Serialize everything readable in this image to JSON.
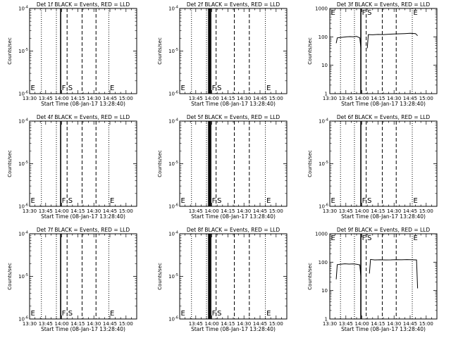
{
  "chart_data": [
    {
      "id": "det1",
      "type": "line",
      "title": "Det 1f BLACK = Events, RED = LLD",
      "xlabel": "Start Time (08-Jan-17 13:28:40)",
      "ylabel": "Counts/sec",
      "xlim": [
        "13:30",
        "15:10"
      ],
      "x_ticks": [
        "13:30",
        "13:45",
        "14:00",
        "14:15",
        "14:30",
        "14:45",
        "15:00"
      ],
      "y_scale": "log",
      "ylim": [
        1e-06,
        0.0001
      ],
      "y_ticks": [
        "10^-6",
        "10^-5",
        "10^-4"
      ],
      "y_tick_style": "power",
      "vlines_dotted": [
        "13:41",
        "13:55",
        "14:44"
      ],
      "vlines_solid": [
        "13:59"
      ],
      "vlines_dashed": [
        "14:05",
        "14:19",
        "14:32"
      ],
      "markers": [
        {
          "label": "E",
          "x": "13:30",
          "pos": "bottom"
        },
        {
          "label": "F",
          "x": "13:59",
          "pos": "bottom"
        },
        {
          "label": "S",
          "x": "14:05",
          "pos": "bottom"
        },
        {
          "label": "E",
          "x": "14:44",
          "pos": "bottom"
        }
      ],
      "series": []
    },
    {
      "id": "det2",
      "type": "line",
      "title": "Det 2f BLACK = Events, RED = LLD",
      "xlabel": "Start Time (08-Jan-17 13:28:40)",
      "ylabel": "Counts/sec",
      "xlim": [
        "13:30",
        "15:10"
      ],
      "x_ticks": [
        "13:45",
        "14:00",
        "14:15",
        "14:30",
        "14:45",
        "15:00"
      ],
      "y_scale": "log",
      "ylim": [
        1e-06,
        0.0001
      ],
      "y_ticks": [
        "10^-6",
        "10^-5",
        "10^-4"
      ],
      "y_tick_style": "power",
      "vlines_dotted": [
        "13:41",
        "13:55",
        "14:50"
      ],
      "vlines_solid": [
        "13:57",
        "13:58",
        "13:59"
      ],
      "vlines_dashed": [
        "14:04",
        "14:21",
        "14:35"
      ],
      "markers": [
        {
          "label": "E",
          "x": "13:30",
          "pos": "bottom"
        },
        {
          "label": "F",
          "x": "13:59",
          "pos": "bottom"
        },
        {
          "label": "S",
          "x": "14:04",
          "pos": "bottom"
        },
        {
          "label": "E",
          "x": "14:50",
          "pos": "bottom"
        }
      ],
      "series": []
    },
    {
      "id": "det3",
      "type": "line",
      "title": "Det 3f BLACK = Events, RED = LLD",
      "xlabel": "Start Time (08-Jan-17 13:28:40)",
      "ylabel": "Counts/sec",
      "xlim": [
        "13:30",
        "15:10"
      ],
      "x_ticks": [
        "13:30",
        "13:45",
        "14:00",
        "14:15",
        "14:30",
        "14:45",
        "15:00"
      ],
      "y_scale": "log",
      "ylim": [
        1,
        1000
      ],
      "y_ticks": [
        "1",
        "10",
        "100",
        "1000"
      ],
      "y_tick_style": "plain",
      "vlines_dotted": [
        "13:40",
        "13:53",
        "14:47"
      ],
      "vlines_solid": [
        "13:59"
      ],
      "vlines_dashed": [
        "14:04",
        "14:19",
        "14:32"
      ],
      "markers": [
        {
          "label": "E",
          "x": "13:30",
          "pos": "top"
        },
        {
          "label": "F",
          "x": "13:59",
          "pos": "top"
        },
        {
          "label": "S",
          "x": "14:04",
          "pos": "top"
        },
        {
          "label": "E",
          "x": "14:47",
          "pos": "top"
        }
      ],
      "series": [
        {
          "color": "#000000",
          "segments": [
            [
              [
                "13:36",
                60
              ],
              [
                "13:37",
                92
              ],
              [
                "13:40",
                95
              ],
              [
                "13:43",
                98
              ],
              [
                "13:46",
                100
              ],
              [
                "13:49",
                102
              ],
              [
                "13:52",
                100
              ],
              [
                "13:55",
                104
              ],
              [
                "13:58",
                92
              ],
              [
                "13:59",
                40
              ]
            ],
            [
              [
                "14:05",
                40
              ],
              [
                "14:06",
                120
              ],
              [
                "14:10",
                118
              ],
              [
                "14:15",
                122
              ],
              [
                "14:20",
                120
              ],
              [
                "14:25",
                124
              ],
              [
                "14:30",
                126
              ],
              [
                "14:35",
                128
              ],
              [
                "14:40",
                130
              ],
              [
                "14:45",
                133
              ],
              [
                "14:50",
                130
              ],
              [
                "14:52",
                110
              ]
            ]
          ]
        }
      ]
    },
    {
      "id": "det4",
      "type": "line",
      "title": "Det 4f BLACK = Events, RED = LLD",
      "xlabel": "Start Time (08-Jan-17 13:28:40)",
      "ylabel": "Counts/sec",
      "xlim": [
        "13:30",
        "15:10"
      ],
      "x_ticks": [
        "13:30",
        "13:45",
        "14:00",
        "14:15",
        "14:30",
        "14:45",
        "15:00"
      ],
      "y_scale": "log",
      "ylim": [
        1e-06,
        0.0001
      ],
      "y_ticks": [
        "10^-6",
        "10^-5",
        "10^-4"
      ],
      "y_tick_style": "power",
      "vlines_dotted": [
        "13:41",
        "13:55",
        "14:44"
      ],
      "vlines_solid": [
        "13:59"
      ],
      "vlines_dashed": [
        "14:05",
        "14:19",
        "14:32"
      ],
      "markers": [
        {
          "label": "E",
          "x": "13:30",
          "pos": "bottom"
        },
        {
          "label": "F",
          "x": "13:59",
          "pos": "bottom"
        },
        {
          "label": "S",
          "x": "14:05",
          "pos": "bottom"
        },
        {
          "label": "E",
          "x": "14:44",
          "pos": "bottom"
        }
      ],
      "series": []
    },
    {
      "id": "det5",
      "type": "line",
      "title": "Det 5f BLACK = Events, RED = LLD",
      "xlabel": "Start Time (08-Jan-17 13:28:40)",
      "ylabel": "Counts/sec",
      "xlim": [
        "13:30",
        "15:10"
      ],
      "x_ticks": [
        "13:45",
        "14:00",
        "14:15",
        "14:30",
        "14:45",
        "15:00"
      ],
      "y_scale": "log",
      "ylim": [
        1e-06,
        0.0001
      ],
      "y_ticks": [
        "10^-6",
        "10^-5",
        "10^-4"
      ],
      "y_tick_style": "power",
      "vlines_dotted": [
        "13:41",
        "13:55",
        "14:50"
      ],
      "vlines_solid": [
        "13:57",
        "13:58",
        "13:59"
      ],
      "vlines_dashed": [
        "14:04",
        "14:21",
        "14:35"
      ],
      "markers": [
        {
          "label": "E",
          "x": "13:30",
          "pos": "bottom"
        },
        {
          "label": "F",
          "x": "13:59",
          "pos": "bottom"
        },
        {
          "label": "S",
          "x": "14:04",
          "pos": "bottom"
        },
        {
          "label": "E",
          "x": "14:50",
          "pos": "bottom"
        }
      ],
      "series": []
    },
    {
      "id": "det6",
      "type": "line",
      "title": "Det 6f BLACK = Events, RED = LLD",
      "xlabel": "Start Time (08-Jan-17 13:28:40)",
      "ylabel": "Counts/sec",
      "xlim": [
        "13:30",
        "15:10"
      ],
      "x_ticks": [
        "13:30",
        "13:45",
        "14:00",
        "14:15",
        "14:30",
        "14:45",
        "15:00"
      ],
      "y_scale": "log",
      "ylim": [
        1e-06,
        0.0001
      ],
      "y_ticks": [
        "10^-6",
        "10^-5",
        "10^-4"
      ],
      "y_tick_style": "power",
      "vlines_dotted": [
        "13:40",
        "13:53",
        "14:47"
      ],
      "vlines_solid": [
        "13:59"
      ],
      "vlines_dashed": [
        "14:04",
        "14:19",
        "14:32"
      ],
      "markers": [
        {
          "label": "E",
          "x": "13:30",
          "pos": "bottom"
        },
        {
          "label": "F",
          "x": "13:59",
          "pos": "bottom"
        },
        {
          "label": "S",
          "x": "14:04",
          "pos": "bottom"
        },
        {
          "label": "E",
          "x": "14:47",
          "pos": "bottom"
        }
      ],
      "series": []
    },
    {
      "id": "det7",
      "type": "line",
      "title": "Det 7f BLACK = Events, RED = LLD",
      "xlabel": "Start Time (08-Jan-17 13:28:40)",
      "ylabel": "Counts/sec",
      "xlim": [
        "13:30",
        "15:10"
      ],
      "x_ticks": [
        "13:30",
        "13:45",
        "14:00",
        "14:15",
        "14:30",
        "14:45",
        "15:00"
      ],
      "y_scale": "log",
      "ylim": [
        1e-06,
        0.0001
      ],
      "y_ticks": [
        "10^-6",
        "10^-5",
        "10^-4"
      ],
      "y_tick_style": "power",
      "vlines_dotted": [
        "13:41",
        "13:55",
        "14:44"
      ],
      "vlines_solid": [
        "13:59"
      ],
      "vlines_dashed": [
        "14:05",
        "14:19",
        "14:32"
      ],
      "markers": [
        {
          "label": "E",
          "x": "13:30",
          "pos": "bottom"
        },
        {
          "label": "F",
          "x": "13:59",
          "pos": "bottom"
        },
        {
          "label": "S",
          "x": "14:05",
          "pos": "bottom"
        },
        {
          "label": "E",
          "x": "14:44",
          "pos": "bottom"
        }
      ],
      "series": []
    },
    {
      "id": "det8",
      "type": "line",
      "title": "Det 8f BLACK = Events, RED = LLD",
      "xlabel": "Start Time (08-Jan-17 13:28:40)",
      "ylabel": "Counts/sec",
      "xlim": [
        "13:30",
        "15:10"
      ],
      "x_ticks": [
        "13:45",
        "14:00",
        "14:15",
        "14:30",
        "14:45",
        "15:00"
      ],
      "y_scale": "log",
      "ylim": [
        1e-06,
        0.0001
      ],
      "y_ticks": [
        "10^-6",
        "10^-5",
        "10^-4"
      ],
      "y_tick_style": "power",
      "vlines_dotted": [
        "13:41",
        "13:55",
        "14:50"
      ],
      "vlines_solid": [
        "13:57",
        "13:58",
        "13:59"
      ],
      "vlines_dashed": [
        "14:04",
        "14:21",
        "14:35"
      ],
      "markers": [
        {
          "label": "E",
          "x": "13:30",
          "pos": "bottom"
        },
        {
          "label": "F",
          "x": "13:59",
          "pos": "bottom"
        },
        {
          "label": "S",
          "x": "14:04",
          "pos": "bottom"
        },
        {
          "label": "E",
          "x": "14:50",
          "pos": "bottom"
        }
      ],
      "series": []
    },
    {
      "id": "det9",
      "type": "line",
      "title": "Det 9f BLACK = Events, RED = LLD",
      "xlabel": "Start Time (08-Jan-17 13:28:40)",
      "ylabel": "Counts/sec",
      "xlim": [
        "13:30",
        "15:10"
      ],
      "x_ticks": [
        "13:30",
        "13:45",
        "14:00",
        "14:15",
        "14:30",
        "14:45",
        "15:00"
      ],
      "y_scale": "log",
      "ylim": [
        1,
        1000
      ],
      "y_ticks": [
        "1",
        "10",
        "100",
        "1000"
      ],
      "y_tick_style": "plain",
      "vlines_dotted": [
        "13:40",
        "13:53",
        "14:47"
      ],
      "vlines_solid": [
        "13:59"
      ],
      "vlines_dashed": [
        "14:04",
        "14:19",
        "14:32"
      ],
      "markers": [
        {
          "label": "E",
          "x": "13:30",
          "pos": "top"
        },
        {
          "label": "F",
          "x": "13:59",
          "pos": "top"
        },
        {
          "label": "S",
          "x": "14:04",
          "pos": "top"
        },
        {
          "label": "E",
          "x": "14:47",
          "pos": "top"
        }
      ],
      "series": [
        {
          "color": "#000000",
          "segments": [
            [
              [
                "13:36",
                25
              ],
              [
                "13:37",
                82
              ],
              [
                "13:40",
                85
              ],
              [
                "13:44",
                88
              ],
              [
                "13:48",
                86
              ],
              [
                "13:52",
                87
              ],
              [
                "13:55",
                85
              ],
              [
                "13:58",
                80
              ],
              [
                "13:59",
                30
              ]
            ],
            [
              [
                "14:07",
                40
              ],
              [
                "14:08",
                125
              ],
              [
                "14:12",
                120
              ],
              [
                "14:17",
                122
              ],
              [
                "14:22",
                120
              ],
              [
                "14:27",
                121
              ],
              [
                "14:32",
                123
              ],
              [
                "14:37",
                122
              ],
              [
                "14:42",
                124
              ],
              [
                "14:47",
                122
              ],
              [
                "14:51",
                120
              ],
              [
                "14:52",
                12
              ]
            ]
          ]
        }
      ]
    }
  ]
}
